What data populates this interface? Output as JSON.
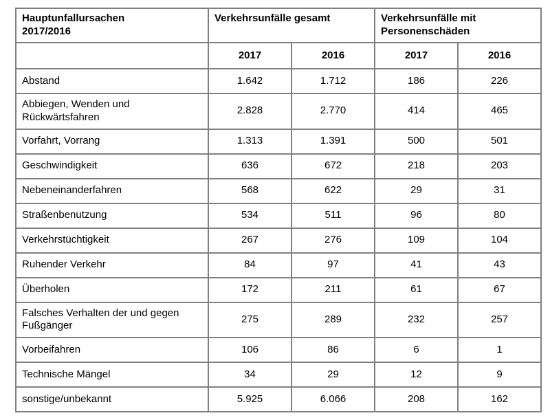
{
  "table": {
    "header": {
      "causes_line1": "Hauptunfallursachen",
      "causes_line2": "2017/2016",
      "group_total": "Verkehrsunfälle gesamt",
      "group_injury": "Verkehrsunfälle mit Personenschäden",
      "years": [
        "2017",
        "2016",
        "2017",
        "2016"
      ]
    },
    "rows": [
      {
        "label": "Abstand",
        "values": [
          "1.642",
          "1.712",
          "186",
          "226"
        ]
      },
      {
        "label": "Abbiegen, Wenden und Rückwärtsfahren",
        "values": [
          "2.828",
          "2.770",
          "414",
          "465"
        ]
      },
      {
        "label": "Vorfahrt, Vorrang",
        "values": [
          "1.313",
          "1.391",
          "500",
          "501"
        ]
      },
      {
        "label": "Geschwindigkeit",
        "values": [
          "636",
          "672",
          "218",
          "203"
        ]
      },
      {
        "label": "Nebeneinanderfahren",
        "values": [
          "568",
          "622",
          "29",
          "31"
        ]
      },
      {
        "label": "Straßenbenutzung",
        "values": [
          "534",
          "511",
          "96",
          "80"
        ]
      },
      {
        "label": "Verkehrstüchtigkeit",
        "values": [
          "267",
          "276",
          "109",
          "104"
        ]
      },
      {
        "label": "Ruhender Verkehr",
        "values": [
          "84",
          "97",
          "41",
          "43"
        ]
      },
      {
        "label": "Überholen",
        "values": [
          "172",
          "211",
          "61",
          "67"
        ]
      },
      {
        "label": "Falsches Verhalten der und gegen Fußgänger",
        "values": [
          "275",
          "289",
          "232",
          "257"
        ]
      },
      {
        "label": "Vorbeifahren",
        "values": [
          "106",
          "86",
          "6",
          "1"
        ]
      },
      {
        "label": "Technische Mängel",
        "values": [
          "34",
          "29",
          "12",
          "9"
        ]
      },
      {
        "label": "sonstige/unbekannt",
        "values": [
          "5.925",
          "6.066",
          "208",
          "162"
        ]
      }
    ],
    "colors": {
      "grid_line": "#808080",
      "text": "#000000",
      "background": "#ffffff"
    }
  }
}
